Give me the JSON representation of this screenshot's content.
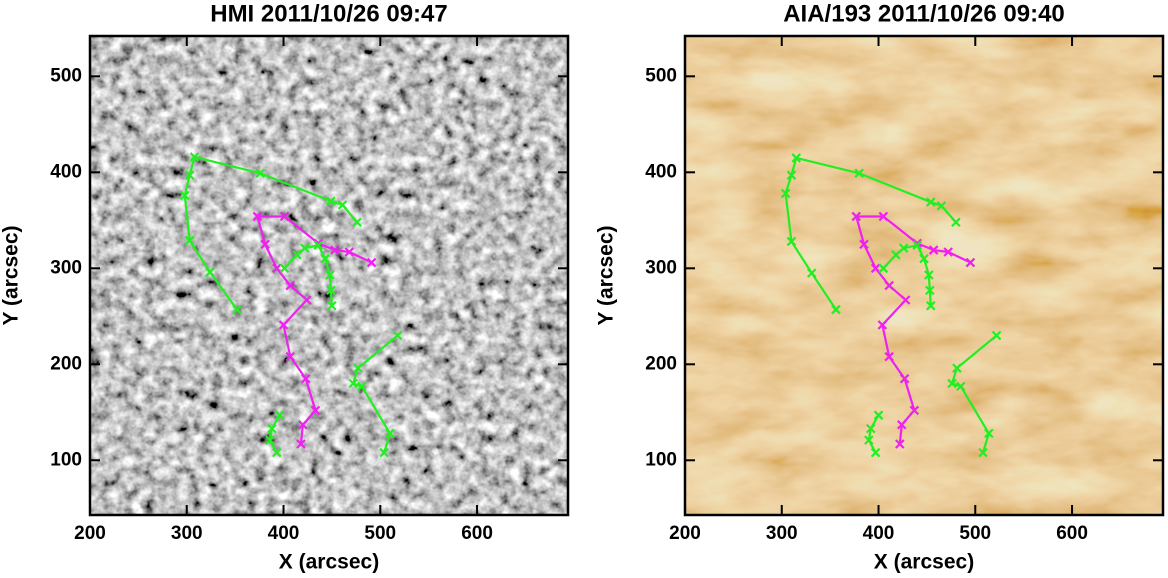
{
  "chart_data": [
    {
      "type": "line",
      "title": "HMI 2011/10/26 09:47",
      "xlabel": "X (arcsec)",
      "ylabel": "Y (arcsec)",
      "background": "magnetogram",
      "xlim": [
        200,
        694
      ],
      "ylim": [
        43,
        542
      ],
      "xticks": [
        200,
        300,
        400,
        500,
        600
      ],
      "yticks": [
        100,
        200,
        300,
        400,
        500
      ],
      "series": [
        {
          "color": "#22ee22",
          "x": [
            352,
            324,
            303,
            298,
            303,
            308,
            376,
            449,
            461,
            476
          ],
          "values": [
            257,
            296,
            329,
            376,
            397,
            416,
            399,
            370,
            366,
            348
          ]
        },
        {
          "color": "#ee22ee",
          "x": [
            491,
            468,
            453,
            436,
            401,
            373,
            381,
            393,
            407,
            424,
            400,
            407,
            423,
            433,
            420,
            418
          ],
          "values": [
            306,
            317,
            319,
            326,
            354,
            354,
            325,
            300,
            282,
            267,
            241,
            208,
            185,
            152,
            137,
            117
          ]
        },
        {
          "color": "#22ee22",
          "x": [
            401,
            414,
            422,
            436,
            443,
            448,
            449,
            450
          ],
          "values": [
            300,
            314,
            321,
            324,
            310,
            293,
            277,
            261
          ]
        },
        {
          "color": "#22ee22",
          "x": [
            518,
            477,
            472,
            481,
            510,
            504
          ],
          "values": [
            230,
            196,
            180,
            177,
            128,
            108
          ]
        },
        {
          "color": "#22ee22",
          "x": [
            396,
            388,
            386,
            393
          ],
          "values": [
            147,
            133,
            121,
            108
          ]
        }
      ]
    },
    {
      "type": "line",
      "title": "AIA/193 2011/10/26 09:40",
      "xlabel": "X (arcsec)",
      "ylabel": "Y (arcsec)",
      "background": "euv",
      "xlim": [
        200,
        694
      ],
      "ylim": [
        43,
        542
      ],
      "xticks": [
        200,
        300,
        400,
        500,
        600
      ],
      "yticks": [
        100,
        200,
        300,
        400,
        500
      ],
      "series": [
        {
          "color": "#22ee22",
          "x": [
            356,
            331,
            310,
            304,
            310,
            315,
            380,
            454,
            465,
            480
          ],
          "values": [
            257,
            295,
            328,
            378,
            397,
            415,
            399,
            369,
            365,
            348
          ]
        },
        {
          "color": "#ee22ee",
          "x": [
            495,
            472,
            457,
            440,
            405,
            377,
            385,
            397,
            411,
            428,
            404,
            411,
            427,
            437,
            424,
            422
          ],
          "values": [
            306,
            317,
            319,
            326,
            354,
            354,
            325,
            300,
            282,
            267,
            241,
            208,
            185,
            152,
            137,
            117
          ]
        },
        {
          "color": "#22ee22",
          "x": [
            405,
            418,
            426,
            440,
            447,
            452,
            453,
            454
          ],
          "values": [
            300,
            314,
            321,
            324,
            310,
            293,
            277,
            261
          ]
        },
        {
          "color": "#22ee22",
          "x": [
            522,
            481,
            476,
            485,
            514,
            508
          ],
          "values": [
            230,
            196,
            180,
            177,
            128,
            108
          ]
        },
        {
          "color": "#22ee22",
          "x": [
            400,
            392,
            390,
            397
          ],
          "values": [
            147,
            133,
            121,
            108
          ]
        }
      ]
    }
  ]
}
